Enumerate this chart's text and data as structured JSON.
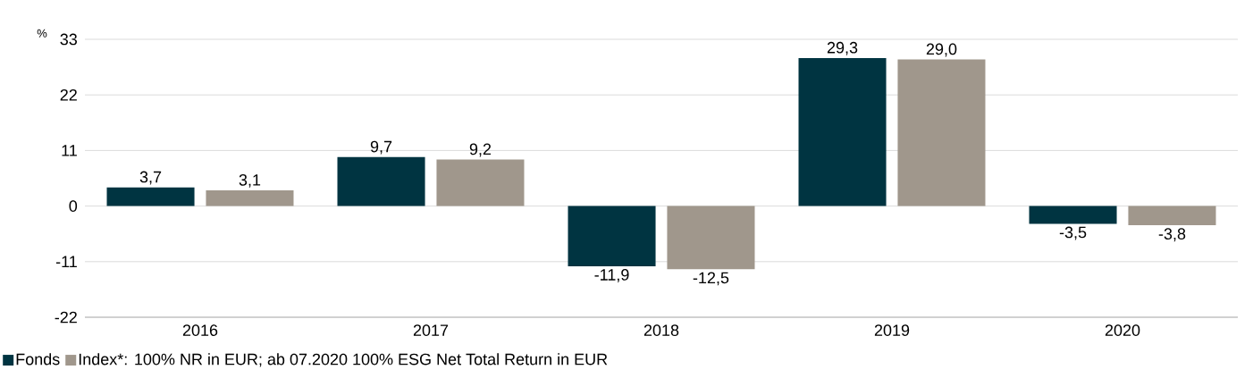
{
  "chart_data": {
    "type": "bar",
    "ylabel": "%",
    "categories": [
      "2016",
      "2017",
      "2018",
      "2019",
      "2020"
    ],
    "series": [
      {
        "name": "Fonds",
        "color": "#003441",
        "values": [
          3.7,
          9.7,
          -11.9,
          29.3,
          -3.5
        ],
        "value_labels": [
          "3,7",
          "9,7",
          "-11,9",
          "29,3",
          "-3,5"
        ]
      },
      {
        "name": "Index*: 100% NR in EUR; ab 07.2020 100% ESG Net Total Return in EUR",
        "color": "#a0978c",
        "values": [
          3.1,
          9.2,
          -12.5,
          29.0,
          -3.8
        ],
        "value_labels": [
          "3,1",
          "9,2",
          "-12,5",
          "29,0",
          "-3,8"
        ]
      }
    ],
    "ylim": [
      -22,
      33
    ],
    "yticks": [
      -22,
      -11,
      0,
      11,
      22,
      33
    ],
    "grid": "y",
    "legend": "bottom left"
  }
}
